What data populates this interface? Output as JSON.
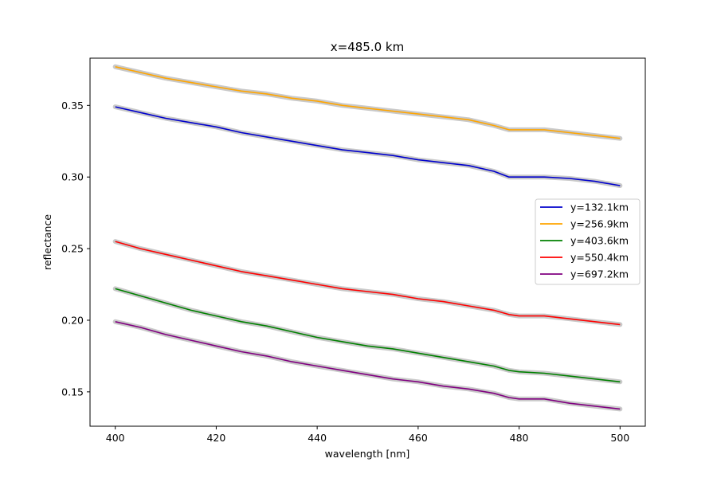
{
  "chart_data": {
    "type": "line",
    "title": "x=485.0 km",
    "xlabel": "wavelength [nm]",
    "ylabel": "reflectance",
    "xlim": [
      395,
      505
    ],
    "ylim": [
      0.126,
      0.383
    ],
    "xticks": [
      400,
      420,
      440,
      460,
      480,
      500
    ],
    "xtick_labels": [
      "400",
      "420",
      "440",
      "460",
      "480",
      "500"
    ],
    "yticks": [
      0.15,
      0.2,
      0.25,
      0.3,
      0.35
    ],
    "ytick_labels": [
      "0.15",
      "0.20",
      "0.25",
      "0.30",
      "0.35"
    ],
    "grid": false,
    "legend_position": "center-right",
    "band_color": "#c0c0c0",
    "x": [
      400,
      405,
      410,
      415,
      420,
      425,
      430,
      435,
      440,
      445,
      450,
      455,
      460,
      465,
      470,
      475,
      478,
      480,
      485,
      490,
      495,
      500
    ],
    "series": [
      {
        "name": "y=132.1km",
        "color": "#0000cc",
        "values": [
          0.349,
          0.345,
          0.341,
          0.338,
          0.335,
          0.331,
          0.328,
          0.325,
          0.322,
          0.319,
          0.317,
          0.315,
          0.312,
          0.31,
          0.308,
          0.304,
          0.3,
          0.3,
          0.3,
          0.299,
          0.297,
          0.294
        ]
      },
      {
        "name": "y=256.9km",
        "color": "#ffa500",
        "values": [
          0.377,
          0.373,
          0.369,
          0.366,
          0.363,
          0.36,
          0.358,
          0.355,
          0.353,
          0.35,
          0.348,
          0.346,
          0.344,
          0.342,
          0.34,
          0.336,
          0.333,
          0.333,
          0.333,
          0.331,
          0.329,
          0.327
        ]
      },
      {
        "name": "y=403.6km",
        "color": "#008000",
        "values": [
          0.222,
          0.217,
          0.212,
          0.207,
          0.203,
          0.199,
          0.196,
          0.192,
          0.188,
          0.185,
          0.182,
          0.18,
          0.177,
          0.174,
          0.171,
          0.168,
          0.165,
          0.164,
          0.163,
          0.161,
          0.159,
          0.157
        ]
      },
      {
        "name": "y=550.4km",
        "color": "#ff0000",
        "values": [
          0.255,
          0.25,
          0.246,
          0.242,
          0.238,
          0.234,
          0.231,
          0.228,
          0.225,
          0.222,
          0.22,
          0.218,
          0.215,
          0.213,
          0.21,
          0.207,
          0.204,
          0.203,
          0.203,
          0.201,
          0.199,
          0.197
        ]
      },
      {
        "name": "y=697.2km",
        "color": "#800080",
        "values": [
          0.199,
          0.195,
          0.19,
          0.186,
          0.182,
          0.178,
          0.175,
          0.171,
          0.168,
          0.165,
          0.162,
          0.159,
          0.157,
          0.154,
          0.152,
          0.149,
          0.146,
          0.145,
          0.145,
          0.142,
          0.14,
          0.138
        ]
      }
    ]
  }
}
